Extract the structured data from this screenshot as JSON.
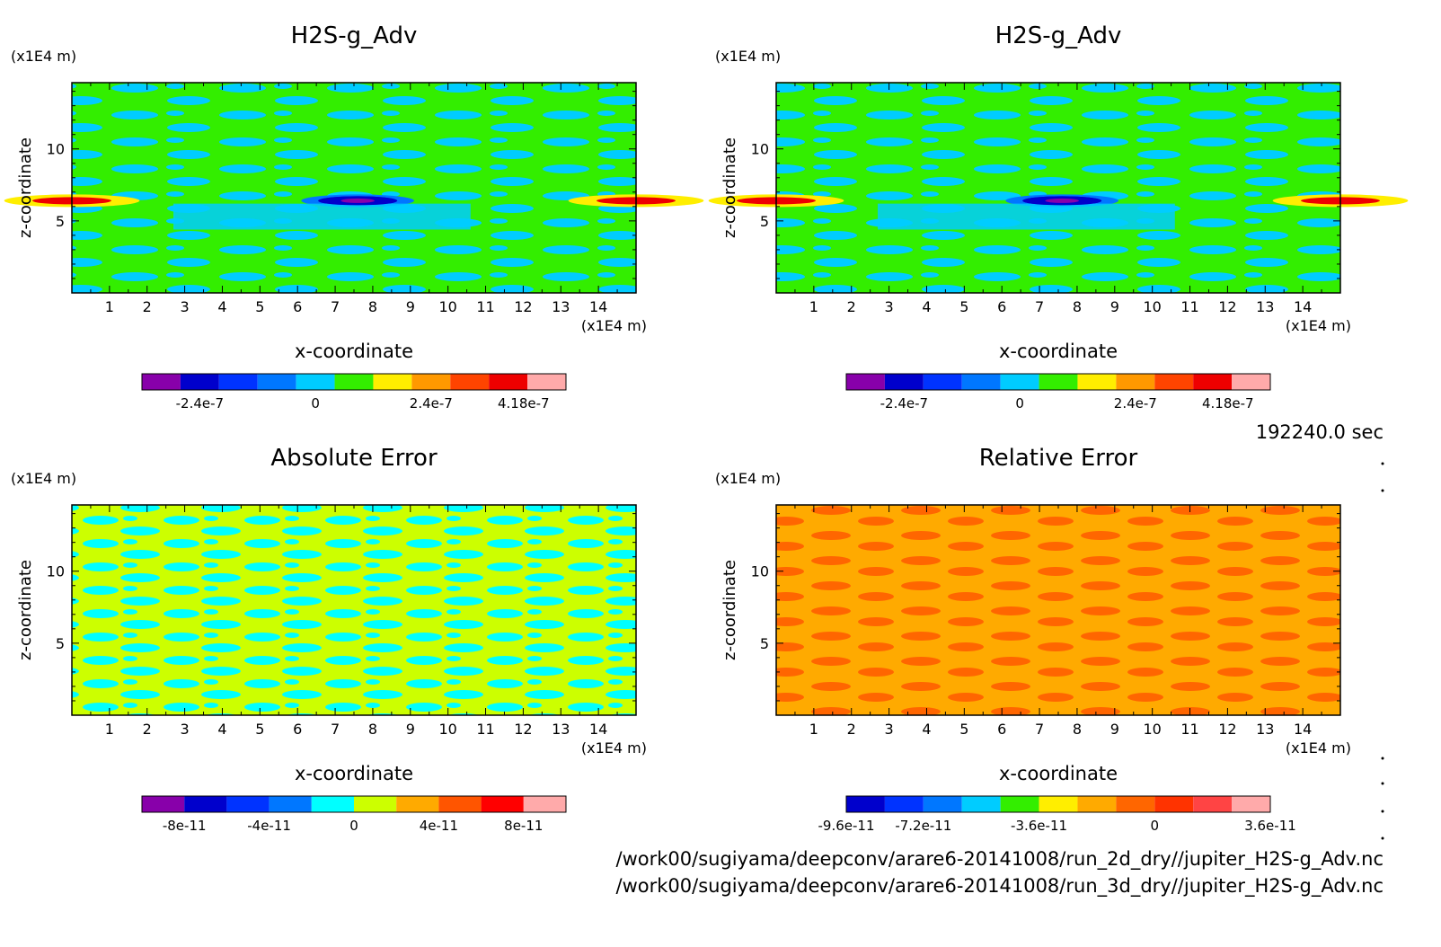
{
  "footer": {
    "time": "192240.0 sec",
    "file1": "/work00/sugiyama/deepconv/arare6-20141008/run_2d_dry//jupiter_H2S-g_Adv.nc",
    "file2": "/work00/sugiyama/deepconv/arare6-20141008/run_3d_dry//jupiter_H2S-g_Adv.nc"
  },
  "chart_data": [
    {
      "type": "heatmap",
      "title": "H2S-g_Adv",
      "xlabel": "x-coordinate",
      "ylabel": "z-coordinate",
      "xunit": "(x1E4 m)",
      "yunit": "(x1E4 m)",
      "xlim": [
        0,
        15
      ],
      "ylim": [
        0,
        14.6
      ],
      "xticks": [
        1,
        2,
        3,
        4,
        5,
        6,
        7,
        8,
        9,
        10,
        11,
        12,
        13,
        14
      ],
      "yticks": [
        5,
        10
      ],
      "pattern": "field",
      "colorbar": {
        "colors": [
          "#8800aa",
          "#0000cc",
          "#0033ff",
          "#0077ff",
          "#00ccff",
          "#33ee00",
          "#ffee00",
          "#ff9900",
          "#ff4400",
          "#ee0000",
          "#ffaaaa"
        ],
        "labels": [
          "-2.4e-7",
          "0",
          "2.4e-7",
          "4.18e-7"
        ],
        "label_positions": [
          1.5,
          4.5,
          7.5,
          9.9
        ]
      }
    },
    {
      "type": "heatmap",
      "title": "H2S-g_Adv",
      "xlabel": "x-coordinate",
      "ylabel": "z-coordinate",
      "xunit": "(x1E4 m)",
      "yunit": "(x1E4 m)",
      "xlim": [
        0,
        15
      ],
      "ylim": [
        0,
        14.6
      ],
      "xticks": [
        1,
        2,
        3,
        4,
        5,
        6,
        7,
        8,
        9,
        10,
        11,
        12,
        13,
        14
      ],
      "yticks": [
        5,
        10
      ],
      "pattern": "field",
      "colorbar": {
        "colors": [
          "#8800aa",
          "#0000cc",
          "#0033ff",
          "#0077ff",
          "#00ccff",
          "#33ee00",
          "#ffee00",
          "#ff9900",
          "#ff4400",
          "#ee0000",
          "#ffaaaa"
        ],
        "labels": [
          "-2.4e-7",
          "0",
          "2.4e-7",
          "4.18e-7"
        ],
        "label_positions": [
          1.5,
          4.5,
          7.5,
          9.9
        ]
      }
    },
    {
      "type": "heatmap",
      "title": "Absolute Error",
      "xlabel": "x-coordinate",
      "ylabel": "z-coordinate",
      "xunit": "(x1E4 m)",
      "yunit": "(x1E4 m)",
      "xlim": [
        0,
        15
      ],
      "ylim": [
        0,
        14.6
      ],
      "xticks": [
        1,
        2,
        3,
        4,
        5,
        6,
        7,
        8,
        9,
        10,
        11,
        12,
        13,
        14
      ],
      "yticks": [
        5,
        10
      ],
      "pattern": "abs",
      "colorbar": {
        "colors": [
          "#8800aa",
          "#0000cc",
          "#0033ff",
          "#0077ff",
          "#00ffff",
          "#ccff00",
          "#ffaa00",
          "#ff5500",
          "#ff0000",
          "#ffaaaa"
        ],
        "labels": [
          "-8e-11",
          "-4e-11",
          "0",
          "4e-11",
          "8e-11"
        ],
        "label_positions": [
          1,
          3,
          5,
          7,
          9
        ]
      }
    },
    {
      "type": "heatmap",
      "title": "Relative Error",
      "xlabel": "x-coordinate",
      "ylabel": "z-coordinate",
      "xunit": "(x1E4 m)",
      "yunit": "(x1E4 m)",
      "xlim": [
        0,
        15
      ],
      "ylim": [
        0,
        14.6
      ],
      "xticks": [
        1,
        2,
        3,
        4,
        5,
        6,
        7,
        8,
        9,
        10,
        11,
        12,
        13,
        14
      ],
      "yticks": [
        5,
        10
      ],
      "pattern": "rel",
      "colorbar": {
        "colors": [
          "#0000cc",
          "#0033ff",
          "#0077ff",
          "#00ccff",
          "#33ee00",
          "#ffee00",
          "#ffaa00",
          "#ff6600",
          "#ff3300",
          "#ff4444",
          "#ffaaaa"
        ],
        "labels": [
          "-9.6e-11",
          "-7.2e-11",
          "-3.6e-11",
          "0",
          "3.6e-11"
        ],
        "label_positions": [
          0,
          2,
          5,
          8,
          11
        ]
      }
    }
  ]
}
